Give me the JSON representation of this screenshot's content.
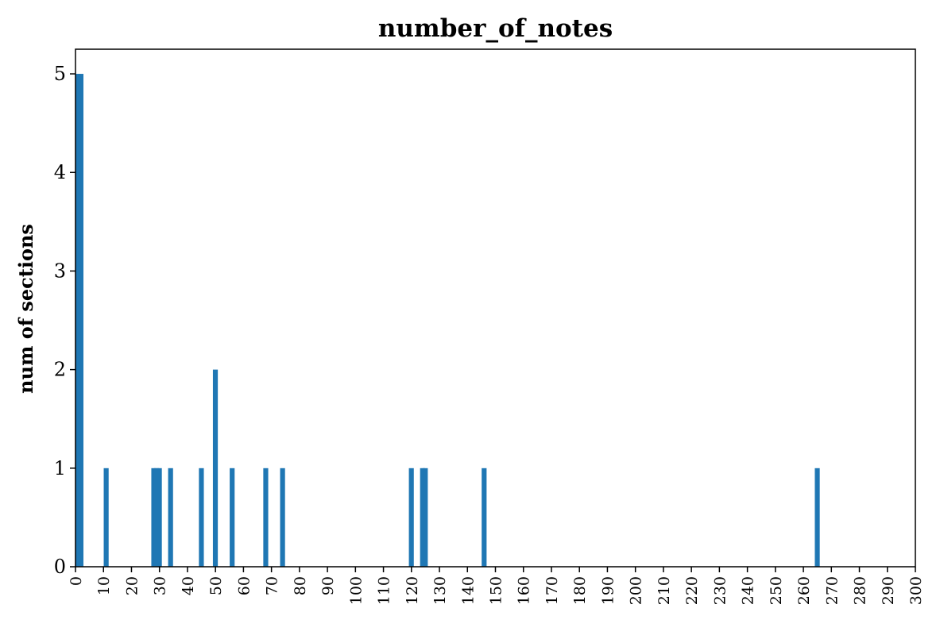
{
  "chart_data": {
    "type": "bar",
    "title": "number_of_notes",
    "xlabel": "",
    "ylabel": "num of sections",
    "xlim": [
      0,
      300
    ],
    "ylim": [
      0,
      5.25
    ],
    "x_ticks": [
      0,
      10,
      20,
      30,
      40,
      50,
      60,
      70,
      80,
      90,
      100,
      110,
      120,
      130,
      140,
      150,
      160,
      170,
      180,
      190,
      200,
      210,
      220,
      230,
      240,
      250,
      260,
      270,
      280,
      290,
      300
    ],
    "y_ticks": [
      0,
      1,
      2,
      3,
      4,
      5
    ],
    "x": [
      0,
      1,
      10,
      27,
      28,
      29,
      33,
      44,
      49,
      55,
      67,
      73,
      119,
      123,
      124,
      145,
      264
    ],
    "values": [
      5,
      5,
      1,
      1,
      1,
      1,
      1,
      1,
      2,
      1,
      1,
      1,
      1,
      1,
      1,
      1,
      1
    ],
    "bar_color": "#1f77b4",
    "grid": false,
    "legend": "none"
  }
}
